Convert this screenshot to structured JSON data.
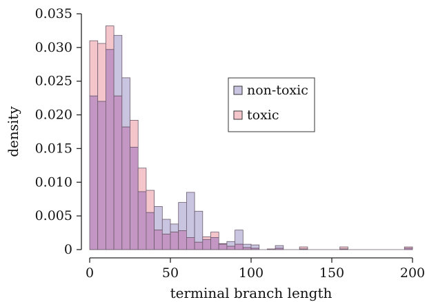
{
  "chart_data": {
    "type": "bar",
    "subtype": "overlapping-histogram",
    "xlabel": "terminal branch length",
    "ylabel": "density",
    "xlim": [
      0,
      200
    ],
    "ylim": [
      0,
      0.035
    ],
    "bin_width": 5,
    "x_ticks": [
      0,
      50,
      100,
      150,
      200
    ],
    "y_ticks": [
      0,
      0.005,
      0.01,
      0.015,
      0.02,
      0.025,
      0.03,
      0.035
    ],
    "y_tick_labels": [
      "0",
      "0.005",
      "0.010",
      "0.015",
      "0.020",
      "0.025",
      "0.030",
      "0.035"
    ],
    "grid": false,
    "legend_position": "right-center",
    "series": [
      {
        "name": "non-toxic",
        "color": "#c9c4e0",
        "values": [
          0.0228,
          0.022,
          0.0297,
          0.0318,
          0.0255,
          0.0152,
          0.0086,
          0.0055,
          0.0064,
          0.0045,
          0.0038,
          0.007,
          0.0085,
          0.0057,
          0.0015,
          0.0018,
          0.0008,
          0.0012,
          0.0029,
          0.0008,
          0.0007,
          0,
          0,
          0.0006,
          0,
          0,
          0.0001,
          0,
          0,
          0,
          0,
          0.0001,
          0,
          0,
          0,
          0,
          0,
          0,
          0,
          0.0002
        ]
      },
      {
        "name": "toxic",
        "color": "#f4c6cc",
        "values": [
          0.031,
          0.0306,
          0.0332,
          0.0228,
          0.0182,
          0.0192,
          0.0121,
          0.0088,
          0.0029,
          0.0023,
          0.0026,
          0.0028,
          0.0018,
          0.0011,
          0.0019,
          0.0026,
          0.0009,
          0.0005,
          0.0008,
          0.0003,
          0.0002,
          0,
          0.0001,
          0.0002,
          0,
          0,
          0.0004,
          0,
          0,
          0,
          0,
          0.0004,
          0,
          0,
          0,
          0,
          0,
          0,
          0,
          0.0004
        ]
      }
    ],
    "overlap_color": "#c496c4"
  }
}
